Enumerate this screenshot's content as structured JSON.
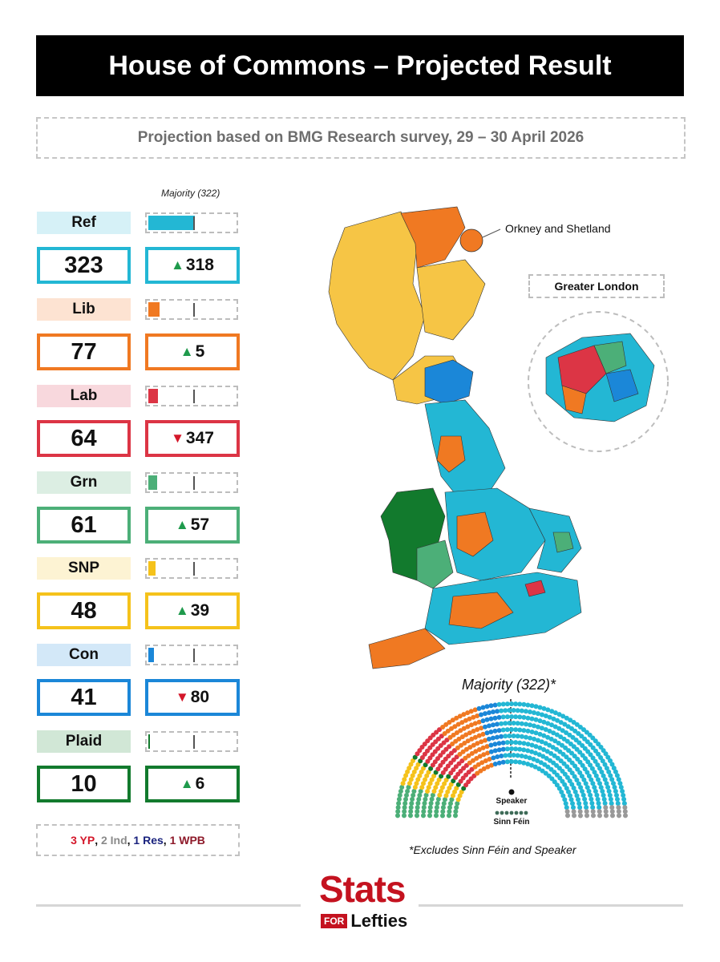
{
  "header": {
    "title": "House of Commons – Projected Result",
    "subtitle": "Projection based on BMG Research survey, 29 – 30 April 2026"
  },
  "chart_data": {
    "type": "bar",
    "majority_label": "Majority (322)",
    "majority": 322,
    "total_seats": 650,
    "parties": [
      {
        "name": "Ref",
        "seats": "323",
        "seats_value": 323,
        "change": "318",
        "direction": "up",
        "color": "#23b7d4",
        "light": "#d6f1f7"
      },
      {
        "name": "Lib",
        "seats": "77",
        "seats_value": 77,
        "change": "5",
        "direction": "up",
        "color": "#f07922",
        "light": "#fde3d2"
      },
      {
        "name": "Lab",
        "seats": "64",
        "seats_value": 64,
        "change": "347",
        "direction": "down",
        "color": "#dc3545",
        "light": "#f8d8dd"
      },
      {
        "name": "Grn",
        "seats": "61",
        "seats_value": 61,
        "change": "57",
        "direction": "up",
        "color": "#4caf78",
        "light": "#dceee3"
      },
      {
        "name": "SNP",
        "seats": "48",
        "seats_value": 48,
        "change": "39",
        "direction": "up",
        "color": "#f5c21b",
        "light": "#fdf3d3"
      },
      {
        "name": "Con",
        "seats": "41",
        "seats_value": 41,
        "change": "80",
        "direction": "down",
        "color": "#1b87d8",
        "light": "#d3e8f8"
      },
      {
        "name": "Plaid",
        "seats": "10",
        "seats_value": 10,
        "change": "6",
        "direction": "up",
        "color": "#127a2d",
        "light": "#d1e7d6"
      }
    ]
  },
  "others": [
    {
      "text": "3 YP",
      "color": "#d4172a"
    },
    {
      "text": ", ",
      "color": "#111111"
    },
    {
      "text": "2 Ind",
      "color": "#8a8a8a"
    },
    {
      "text": ", ",
      "color": "#111111"
    },
    {
      "text": "1 Res",
      "color": "#1a237e"
    },
    {
      "text": ", ",
      "color": "#111111"
    },
    {
      "text": "1 WPB",
      "color": "#8e1a2a"
    }
  ],
  "map": {
    "callout": "Orkney and Shetland",
    "london_title": "Greater London"
  },
  "parliament": {
    "caption": "Majority (322)*",
    "speaker_label": "Speaker",
    "sinn_fein_label": "Sinn Féin",
    "footnote": "*Excludes Sinn Féin and Speaker"
  },
  "logo": {
    "stats": "Stats",
    "for": "FOR",
    "lefties": "Lefties"
  }
}
